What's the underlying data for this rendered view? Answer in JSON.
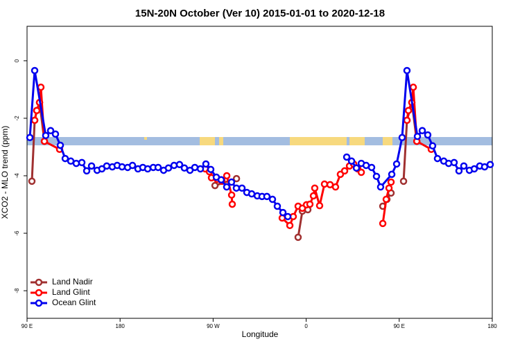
{
  "chart_data": {
    "type": "line",
    "title": "15N-20N October (Ver 10)   2015-01-01 to 2020-12-18",
    "xlabel": "Longitude",
    "ylabel": "XCO2 - MLO trend (ppm)",
    "xlim": [
      90,
      540
    ],
    "ylim": [
      -8.96,
      1.2
    ],
    "xticks": [
      {
        "value": 90,
        "label": "90 E"
      },
      180,
      {
        "value": 270,
        "label": "90 W"
      },
      {
        "value": 360,
        "label": "0"
      },
      {
        "value": 450,
        "label": "90 E"
      },
      {
        "value": 540,
        "label": "180"
      }
    ],
    "yticks": [
      0,
      -2,
      -4,
      -6,
      -8
    ],
    "legend": "bottom-left",
    "series": [
      {
        "name": "Land Nadir",
        "color": "#a03030",
        "x": [
          94.7,
          97.4,
          99.4,
          102.1,
          106.8,
          null,
          271.8,
          292.6,
          null,
          352.2,
          356.3,
          361.6,
          null,
          434.1,
          438.1,
          442.1,
          null,
          454.2,
          457.5,
          462.2,
          467
        ],
        "values": [
          -4.19,
          -2.07,
          -1.73,
          -1.45,
          -2.8,
          null,
          -4.34,
          -4.1,
          null,
          -6.14,
          -5.23,
          -5.18,
          null,
          -5.06,
          -4.82,
          -4.6,
          null,
          -4.19,
          -2.07,
          -1.45,
          -2.8
        ]
      },
      {
        "name": "Land Glint",
        "color": "#ff0000",
        "x": [
          97.4,
          99.4,
          102.1,
          103.4,
          106.8,
          121.5,
          null,
          262.4,
          266.4,
          268.4,
          273.8,
          278.5,
          283.2,
          287.9,
          288.5,
          null,
          336.8,
          344.2,
          347.5,
          352.2,
          356.3,
          360.3,
          363.6,
          367,
          368.3,
          373,
          377.7,
          383.1,
          388.4,
          393.1,
          397.2,
          401.9,
          405.9,
          409.9,
          413.3,
          null,
          434.1,
          437.4,
          440.1,
          442.1,
          null,
          457.5,
          458.9,
          462.2,
          463.6,
          467,
          481
        ],
        "values": [
          -2.07,
          -1.73,
          -1.45,
          -0.92,
          -2.8,
          -3.08,
          null,
          -3.76,
          -3.86,
          -4.07,
          -4.12,
          -4.19,
          -4.0,
          -4.67,
          -4.99,
          null,
          -5.47,
          -5.73,
          -5.42,
          -5.06,
          -5.13,
          -5.01,
          -4.99,
          -4.7,
          -4.43,
          -5.04,
          -4.29,
          -4.31,
          -4.39,
          -3.95,
          -3.83,
          -3.66,
          -3.59,
          -3.76,
          -3.88,
          null,
          -5.66,
          -4.82,
          -4.43,
          -4.22,
          null,
          -2.07,
          -1.73,
          -1.45,
          -0.92,
          -2.8,
          -3.08
        ]
      },
      {
        "name": "Ocean Glint",
        "color": "#0000ee",
        "x": [
          92.7,
          97.4,
          108.1,
          112.8,
          117.5,
          122.2,
          126.9,
          132.3,
          137.6,
          143,
          147.7,
          152.4,
          157.8,
          162.4,
          167.1,
          172.5,
          177.2,
          181.9,
          187.3,
          192,
          197.3,
          202,
          206.7,
          212.1,
          216.8,
          222.1,
          226.8,
          232.2,
          237.5,
          242.2,
          247.6,
          252.3,
          257.7,
          263,
          267.7,
          273.1,
          277.8,
          283.1,
          287.8,
          292.5,
          297.9,
          302.6,
          307.3,
          312.7,
          317.3,
          322,
          327.4,
          332.1,
          337.5,
          342.2,
          null,
          399.2,
          403.9,
          408.6,
          413.3,
          418,
          423.3,
          428,
          432,
          442.8,
          447.5,
          452.8,
          457.5,
          467.6,
          472.3,
          477.6,
          482.3,
          487,
          493.1,
          497.8,
          503.1,
          507.8,
          512.5,
          517.9,
          522.6,
          527.9,
          532.6,
          538
        ],
        "values": [
          -2.67,
          -0.34,
          -2.6,
          -2.43,
          -2.55,
          -2.94,
          -3.4,
          -3.49,
          -3.57,
          -3.54,
          -3.83,
          -3.66,
          -3.81,
          -3.76,
          -3.66,
          -3.69,
          -3.64,
          -3.69,
          -3.71,
          -3.64,
          -3.76,
          -3.71,
          -3.76,
          -3.71,
          -3.71,
          -3.81,
          -3.73,
          -3.64,
          -3.61,
          -3.73,
          -3.81,
          -3.71,
          -3.76,
          -3.59,
          -3.78,
          -4.05,
          -4.14,
          -4.39,
          -4.22,
          -4.43,
          -4.43,
          -4.58,
          -4.63,
          -4.7,
          -4.72,
          -4.72,
          -4.82,
          -5.06,
          -5.28,
          -5.42,
          null,
          -3.35,
          -3.49,
          -3.73,
          -3.57,
          -3.64,
          -3.71,
          -4.02,
          -4.39,
          -3.95,
          -3.59,
          -2.67,
          -0.34,
          -2.63,
          -2.43,
          -2.58,
          -2.96,
          -3.4,
          -3.49,
          -3.57,
          -3.54,
          -3.83,
          -3.66,
          -3.81,
          -3.76,
          -3.66,
          -3.69,
          -3.61
        ]
      }
    ]
  }
}
